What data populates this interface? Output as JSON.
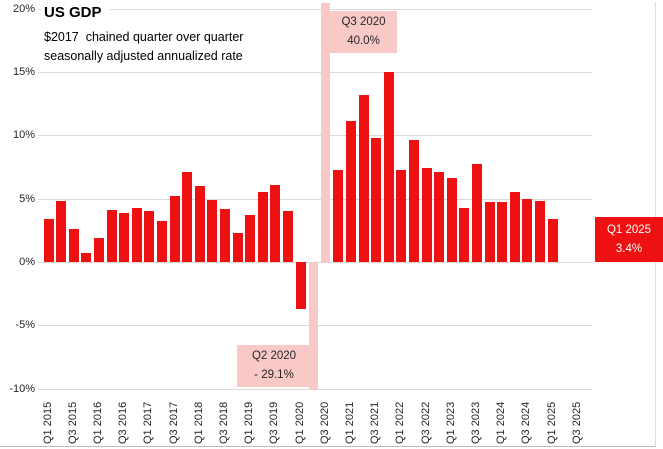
{
  "title": "US GDP",
  "subtitle_line1": "$2017  chained quarter over quarter",
  "subtitle_line2": "seasonally adjusted annualized rate",
  "colors": {
    "bar_red": "#ee1111",
    "clipped_band_pink": "#f8c9c6",
    "gridline_gray": "#d9d9d9",
    "annotation_text": "#262626",
    "callout_red_bg": "#ee1111",
    "callout_red_text": "#ffffff"
  },
  "y_axis": {
    "ticks": [
      "20%",
      "15%",
      "10%",
      "5%",
      "0%",
      "-5%",
      "-10%"
    ],
    "values": [
      20,
      15,
      10,
      5,
      0,
      -5,
      -10
    ]
  },
  "x_axis": {
    "ticks": [
      "Q1 2015",
      "Q3 2015",
      "Q1 2016",
      "Q3 2016",
      "Q1 2017",
      "Q3 2017",
      "Q1 2018",
      "Q3 2018",
      "Q1 2019",
      "Q3 2019",
      "Q1 2020",
      "Q3 2020",
      "Q1 2021",
      "Q3 2021",
      "Q1 2022",
      "Q3 2022",
      "Q1 2023",
      "Q3 2023",
      "Q1 2024",
      "Q3 2024",
      "Q1 2025",
      "Q3 2025"
    ]
  },
  "annotations": {
    "q3_2020": {
      "line1": "Q3 2020",
      "line2": "40.0%"
    },
    "q2_2020": {
      "line1": "Q2 2020",
      "line2": "- 29.1%"
    },
    "q1_2025": {
      "line1": "Q1 2025",
      "line2": "3.4%"
    }
  },
  "chart_data": {
    "type": "bar",
    "title": "US GDP",
    "subtitle": "$2017 chained quarter over quarter seasonally adjusted annualized rate",
    "x": [
      "Q1 2015",
      "Q2 2015",
      "Q3 2015",
      "Q4 2015",
      "Q1 2016",
      "Q2 2016",
      "Q3 2016",
      "Q4 2016",
      "Q1 2017",
      "Q2 2017",
      "Q3 2017",
      "Q4 2017",
      "Q1 2018",
      "Q2 2018",
      "Q3 2018",
      "Q4 2018",
      "Q1 2019",
      "Q2 2019",
      "Q3 2019",
      "Q4 2019",
      "Q1 2020",
      "Q2 2020",
      "Q3 2020",
      "Q4 2020",
      "Q1 2021",
      "Q2 2021",
      "Q3 2021",
      "Q4 2021",
      "Q1 2022",
      "Q2 2022",
      "Q3 2022",
      "Q4 2022",
      "Q1 2023",
      "Q2 2023",
      "Q3 2023",
      "Q4 2023",
      "Q1 2024",
      "Q2 2024",
      "Q3 2024",
      "Q4 2024",
      "Q1 2025"
    ],
    "values": [
      3.4,
      4.8,
      2.6,
      0.7,
      1.9,
      4.1,
      3.9,
      4.3,
      4.0,
      3.2,
      5.2,
      7.1,
      6.0,
      4.9,
      4.2,
      2.3,
      3.7,
      5.5,
      6.1,
      4.0,
      -3.7,
      -29.1,
      40.0,
      7.3,
      11.1,
      13.2,
      9.8,
      15.0,
      7.3,
      9.6,
      7.4,
      7.1,
      6.6,
      4.3,
      7.7,
      4.7,
      4.7,
      5.5,
      5.0,
      4.8,
      3.4
    ],
    "ylabel": "",
    "xlabel": "",
    "ylim": [
      -10,
      20
    ],
    "grid": "on",
    "legend": "none",
    "clipped_high": {
      "label": "Q3 2020",
      "value": 40.0
    },
    "clipped_low": {
      "label": "Q2 2020",
      "value": -29.1
    },
    "latest_callout": {
      "label": "Q1 2025",
      "value": 3.4
    }
  }
}
